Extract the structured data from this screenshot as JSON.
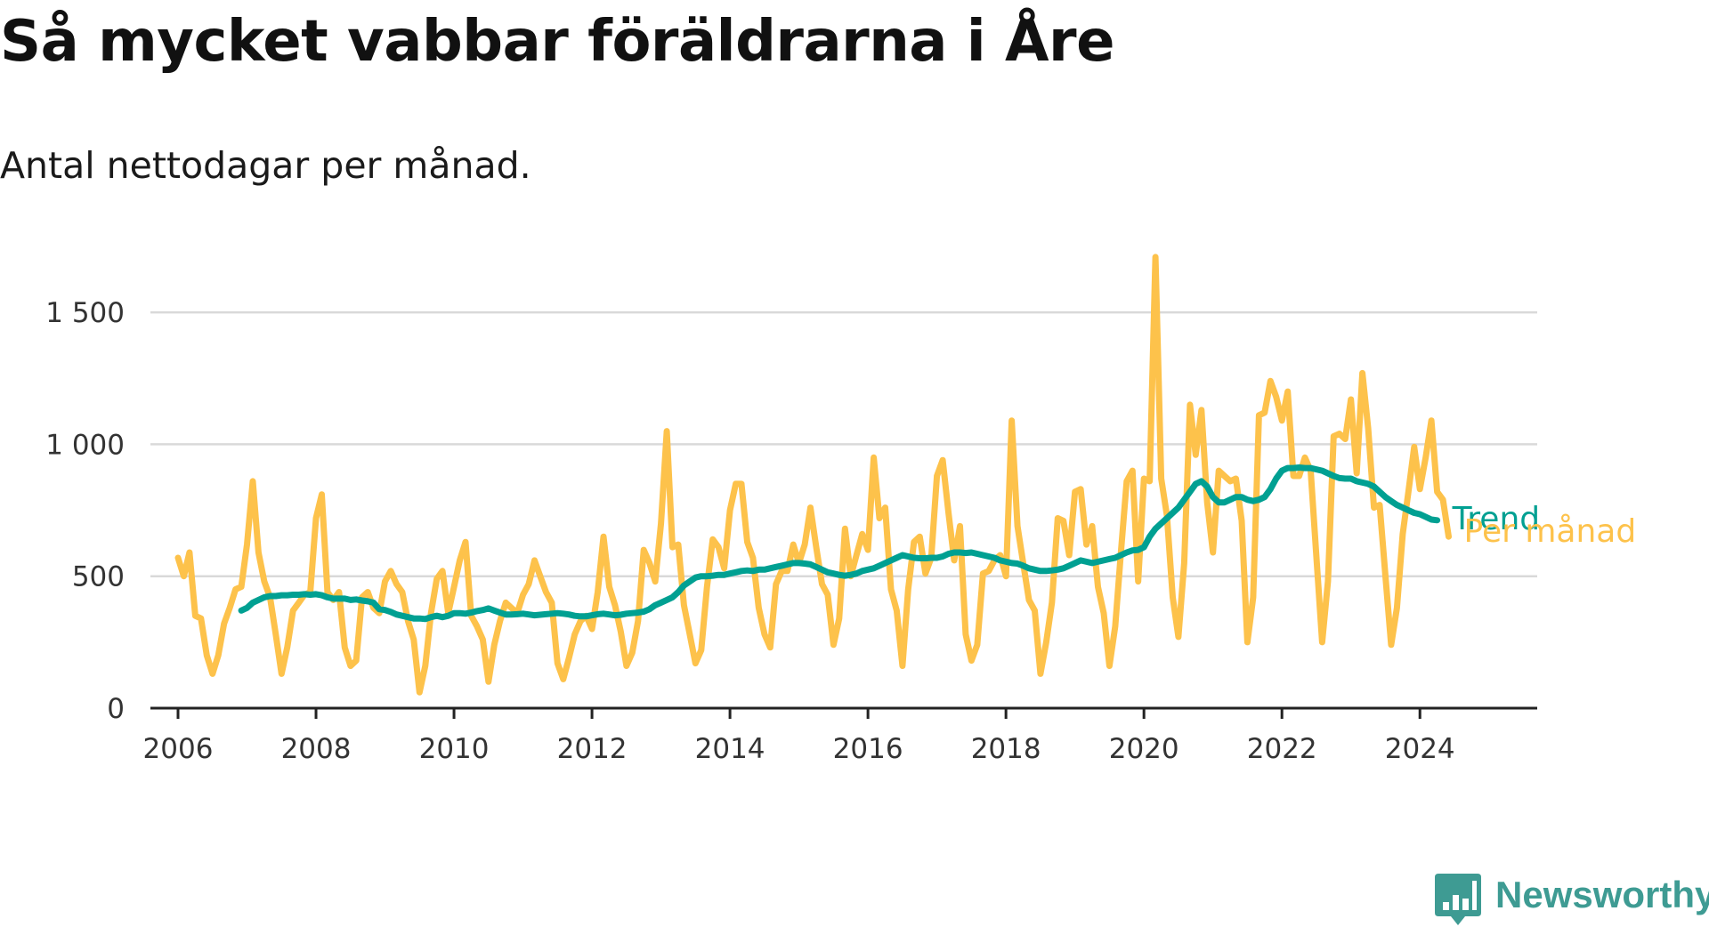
{
  "header": {
    "title": "Så mycket vabbar föräldrarna i Åre",
    "subtitle": "Antal nettodagar per månad."
  },
  "brand": {
    "name": "Newsworthy",
    "color": "#3e9b93",
    "icon": "newsworthy-logo-icon"
  },
  "colors": {
    "monthly": "#fdc24b",
    "trend": "#00a092",
    "grid": "#d9d9d9",
    "axis": "#222222"
  },
  "chart_data": {
    "type": "line",
    "title": "Så mycket vabbar föräldrarna i Åre",
    "subtitle": "Antal nettodagar per månad.",
    "xlabel": "",
    "ylabel": "",
    "xlim": [
      2005.6,
      2025.7
    ],
    "ylim": [
      0,
      1750
    ],
    "grid": true,
    "x_ticks": [
      2006,
      2008,
      2010,
      2012,
      2014,
      2016,
      2018,
      2020,
      2022,
      2024
    ],
    "x_tick_labels": [
      "2006",
      "2008",
      "2010",
      "2012",
      "2014",
      "2016",
      "2018",
      "2020",
      "2022",
      "2024"
    ],
    "y_ticks": [
      0,
      500,
      1000,
      1500
    ],
    "y_tick_labels": [
      "0",
      "500",
      "1 000",
      "1 500"
    ],
    "series": [
      {
        "name": "Per månad",
        "start": [
          2006,
          1
        ],
        "values": [
          570,
          500,
          590,
          350,
          340,
          200,
          130,
          200,
          320,
          380,
          450,
          460,
          620,
          860,
          590,
          480,
          420,
          280,
          130,
          230,
          370,
          400,
          430,
          440,
          720,
          810,
          440,
          410,
          440,
          230,
          160,
          180,
          420,
          440,
          380,
          360,
          480,
          520,
          470,
          440,
          330,
          260,
          60,
          160,
          360,
          490,
          520,
          360,
          460,
          560,
          630,
          350,
          310,
          260,
          100,
          240,
          330,
          400,
          380,
          360,
          430,
          470,
          560,
          500,
          440,
          400,
          170,
          110,
          190,
          280,
          330,
          350,
          300,
          440,
          650,
          460,
          390,
          290,
          160,
          210,
          330,
          600,
          550,
          480,
          700,
          1050,
          610,
          620,
          390,
          280,
          170,
          220,
          460,
          640,
          610,
          530,
          750,
          850,
          850,
          630,
          570,
          380,
          280,
          230,
          470,
          520,
          520,
          620,
          550,
          620,
          760,
          610,
          470,
          430,
          240,
          340,
          680,
          500,
          580,
          660,
          600,
          950,
          720,
          760,
          450,
          370,
          160,
          450,
          630,
          650,
          510,
          570,
          880,
          940,
          740,
          560,
          690,
          280,
          180,
          240,
          510,
          520,
          560,
          580,
          500,
          1090,
          690,
          550,
          410,
          370,
          130,
          250,
          400,
          720,
          710,
          580,
          820,
          830,
          620,
          690,
          460,
          360,
          160,
          310,
          590,
          860,
          900,
          480,
          870,
          860,
          1710,
          870,
          730,
          420,
          270,
          550,
          1150,
          960,
          1130,
          780,
          590,
          900,
          880,
          860,
          870,
          710,
          250,
          420,
          1110,
          1120,
          1240,
          1180,
          1090,
          1200,
          880,
          880,
          950,
          900,
          570,
          250,
          480,
          1030,
          1040,
          1020,
          1170,
          890,
          1270,
          1060,
          760,
          770,
          500,
          240,
          380,
          660,
          820,
          990,
          830,
          950,
          1090,
          820,
          790,
          650
        ]
      },
      {
        "name": "Trend",
        "start": [
          2006,
          12
        ],
        "values": [
          370,
          380,
          400,
          410,
          420,
          425,
          425,
          428,
          428,
          430,
          430,
          432,
          430,
          432,
          428,
          420,
          415,
          415,
          415,
          410,
          412,
          408,
          405,
          400,
          375,
          372,
          365,
          355,
          350,
          345,
          340,
          340,
          338,
          345,
          350,
          345,
          350,
          360,
          360,
          358,
          362,
          368,
          372,
          378,
          370,
          362,
          355,
          355,
          356,
          358,
          355,
          352,
          354,
          356,
          358,
          360,
          358,
          355,
          350,
          348,
          348,
          352,
          356,
          358,
          355,
          352,
          354,
          358,
          360,
          362,
          366,
          375,
          390,
          400,
          410,
          420,
          440,
          465,
          480,
          495,
          500,
          500,
          502,
          505,
          505,
          510,
          515,
          520,
          522,
          520,
          525,
          525,
          530,
          535,
          540,
          545,
          550,
          550,
          548,
          545,
          535,
          525,
          515,
          510,
          505,
          502,
          505,
          510,
          520,
          525,
          530,
          540,
          550,
          560,
          570,
          580,
          575,
          570,
          568,
          568,
          570,
          570,
          575,
          585,
          590,
          590,
          588,
          590,
          585,
          580,
          575,
          570,
          560,
          555,
          550,
          548,
          540,
          530,
          525,
          520,
          520,
          522,
          525,
          530,
          540,
          550,
          560,
          555,
          550,
          555,
          560,
          565,
          570,
          580,
          590,
          598,
          600,
          610,
          650,
          680,
          700,
          720,
          740,
          760,
          790,
          820,
          850,
          860,
          840,
          800,
          780,
          780,
          790,
          800,
          800,
          790,
          785,
          790,
          800,
          830,
          870,
          900,
          910,
          910,
          912,
          910,
          910,
          905,
          900,
          890,
          880,
          872,
          870,
          870,
          860,
          855,
          850,
          840,
          820,
          800,
          785,
          770,
          760,
          750,
          740,
          735,
          725,
          715,
          712
        ]
      }
    ],
    "end_labels": [
      "Trend",
      "Per månad"
    ]
  }
}
